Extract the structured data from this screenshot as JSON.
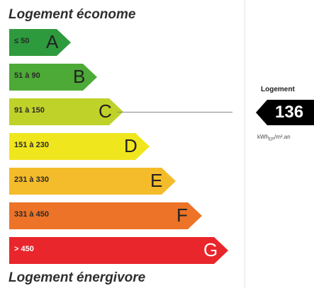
{
  "top_label": "Logement économe",
  "bottom_label": "Logement énergivore",
  "classes": [
    {
      "range": "≤ 50",
      "letter": "A",
      "color": "#2e9a3e"
    },
    {
      "range": "51 à 90",
      "letter": "B",
      "color": "#4daa37"
    },
    {
      "range": "91 à 150",
      "letter": "C",
      "color": "#bfd22a"
    },
    {
      "range": "151 à 230",
      "letter": "D",
      "color": "#f0e61e"
    },
    {
      "range": "231 à 330",
      "letter": "E",
      "color": "#f4bb2a"
    },
    {
      "range": "331 à 450",
      "letter": "F",
      "color": "#ec7327"
    },
    {
      "range": "> 450",
      "letter": "G",
      "color": "#e8262c"
    }
  ],
  "current_class": "C",
  "housing": {
    "title": "Logement",
    "value": "136",
    "unit_prefix": "kWh",
    "unit_sub": "EP",
    "unit_suffix": "/m².an"
  }
}
